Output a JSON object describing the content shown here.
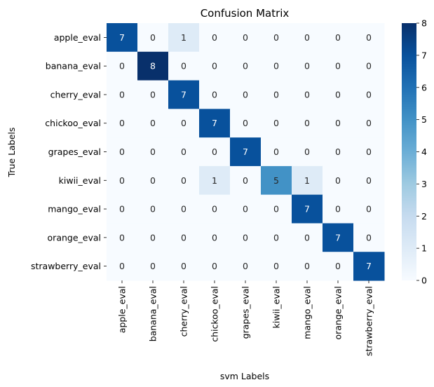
{
  "chart_data": {
    "type": "heatmap",
    "title": "Confusion Matrix",
    "xlabel": "svm Labels",
    "ylabel": "True Labels",
    "x_categories": [
      "apple_eval",
      "banana_eval",
      "cherry_eval",
      "chickoo_eval",
      "grapes_eval",
      "kiwii_eval",
      "mango_eval",
      "orange_eval",
      "strawberry_eval"
    ],
    "y_categories": [
      "apple_eval",
      "banana_eval",
      "cherry_eval",
      "chickoo_eval",
      "grapes_eval",
      "kiwii_eval",
      "mango_eval",
      "orange_eval",
      "strawberry_eval"
    ],
    "values": [
      [
        7,
        0,
        1,
        0,
        0,
        0,
        0,
        0,
        0
      ],
      [
        0,
        8,
        0,
        0,
        0,
        0,
        0,
        0,
        0
      ],
      [
        0,
        0,
        7,
        0,
        0,
        0,
        0,
        0,
        0
      ],
      [
        0,
        0,
        0,
        7,
        0,
        0,
        0,
        0,
        0
      ],
      [
        0,
        0,
        0,
        0,
        7,
        0,
        0,
        0,
        0
      ],
      [
        0,
        0,
        0,
        1,
        0,
        5,
        1,
        0,
        0
      ],
      [
        0,
        0,
        0,
        0,
        0,
        0,
        7,
        0,
        0
      ],
      [
        0,
        0,
        0,
        0,
        0,
        0,
        0,
        7,
        0
      ],
      [
        0,
        0,
        0,
        0,
        0,
        0,
        0,
        0,
        7
      ]
    ],
    "colormap": "Blues",
    "colorbar": {
      "range": [
        0,
        8
      ],
      "ticks": [
        0,
        1,
        2,
        3,
        4,
        5,
        6,
        7,
        8
      ],
      "low_color": "#f7fbff",
      "high_color": "#08306b"
    },
    "annotations": true,
    "grid": false
  }
}
